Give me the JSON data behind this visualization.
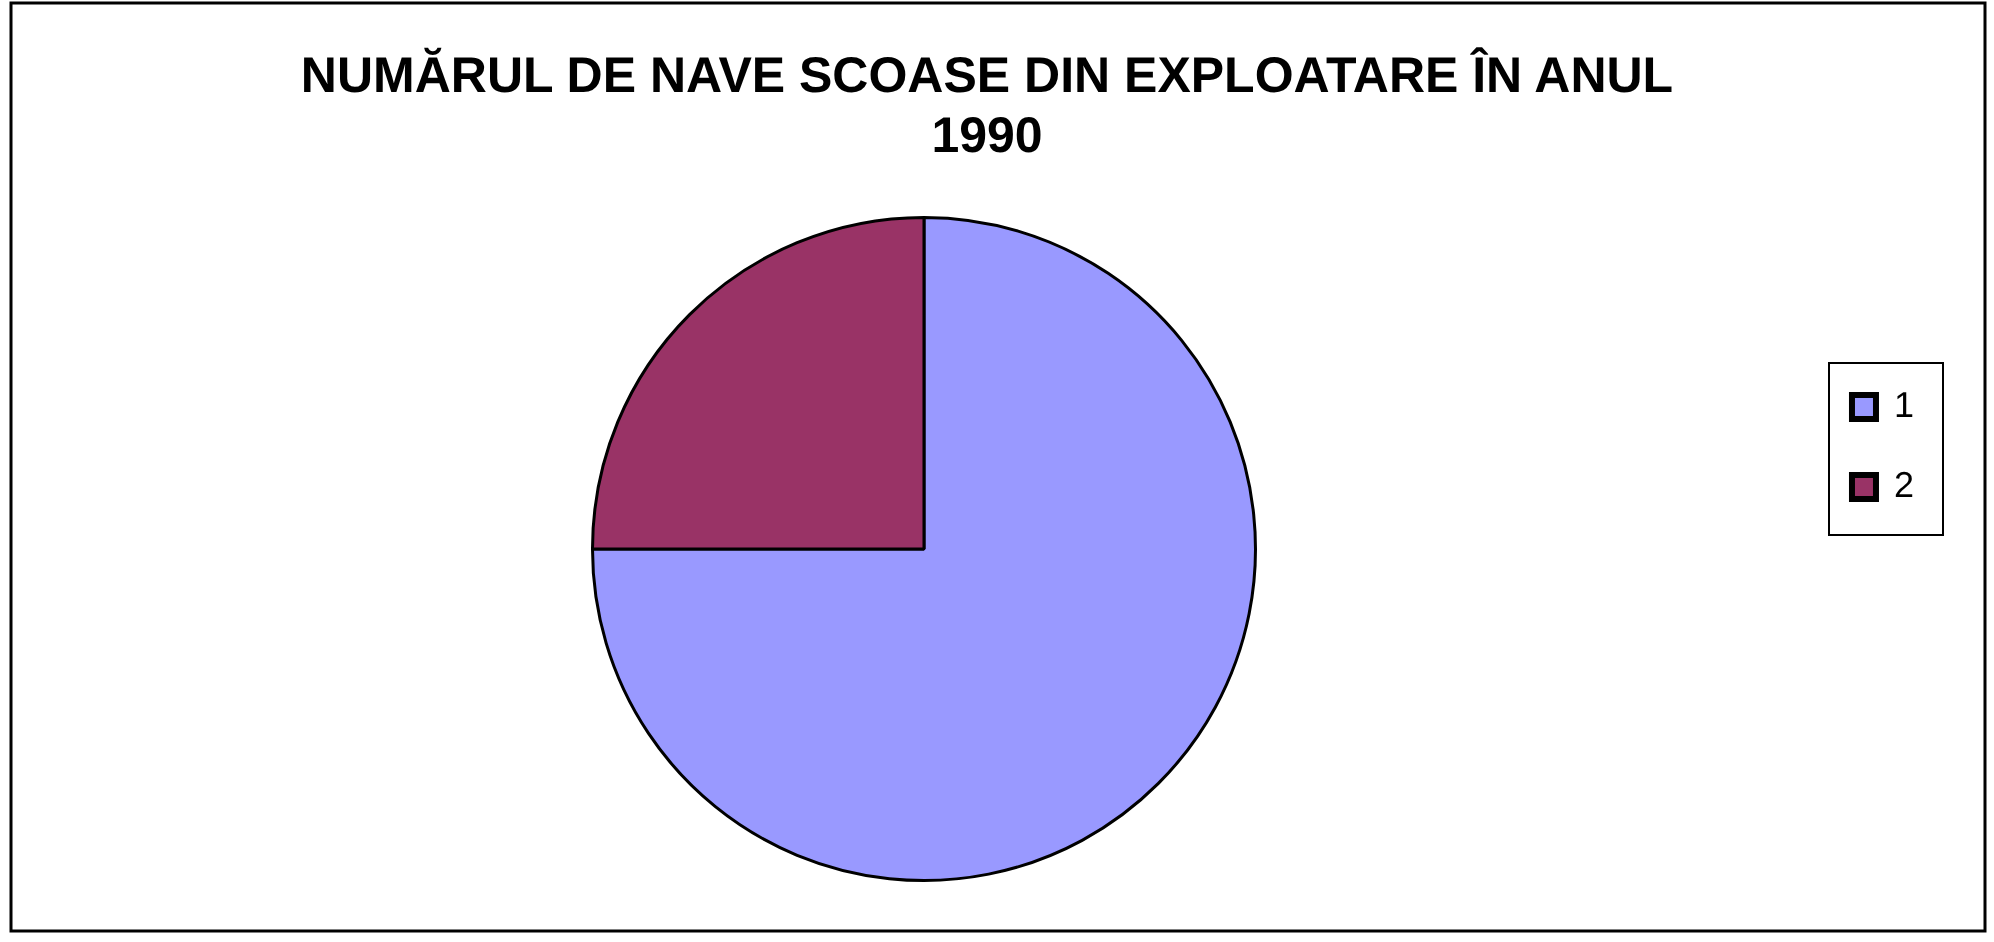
{
  "chart_data": {
    "type": "pie",
    "title": "NUMĂRUL DE NAVE SCOASE DIN EXPLOATARE ÎN ANUL 1990",
    "categories": [
      "1",
      "2"
    ],
    "values": [
      75,
      25
    ],
    "colors": [
      "#9999ff",
      "#993366"
    ],
    "legend": "right"
  }
}
